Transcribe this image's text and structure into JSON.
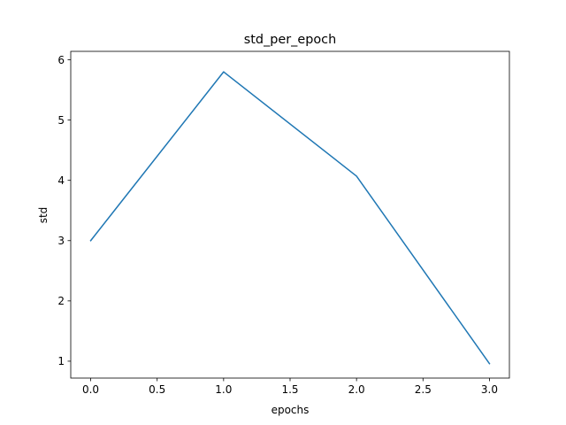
{
  "chart_data": {
    "type": "line",
    "title": "std_per_epoch",
    "xlabel": "epochs",
    "ylabel": "std",
    "x": [
      0,
      1,
      2,
      3
    ],
    "series": [
      {
        "values": [
          3.0,
          5.8,
          4.07,
          0.96
        ],
        "color": "#1f77b4"
      }
    ],
    "xlim": [
      -0.15,
      3.15
    ],
    "ylim": [
      0.72,
      6.14
    ],
    "xticks": [
      0.0,
      0.5,
      1.0,
      1.5,
      2.0,
      2.5,
      3.0
    ],
    "xtick_labels": [
      "0.0",
      "0.5",
      "1.0",
      "1.5",
      "2.0",
      "2.5",
      "3.0"
    ],
    "yticks": [
      1,
      2,
      3,
      4,
      5,
      6
    ],
    "ytick_labels": [
      "1",
      "2",
      "3",
      "4",
      "5",
      "6"
    ],
    "grid": false,
    "legend": "none"
  }
}
